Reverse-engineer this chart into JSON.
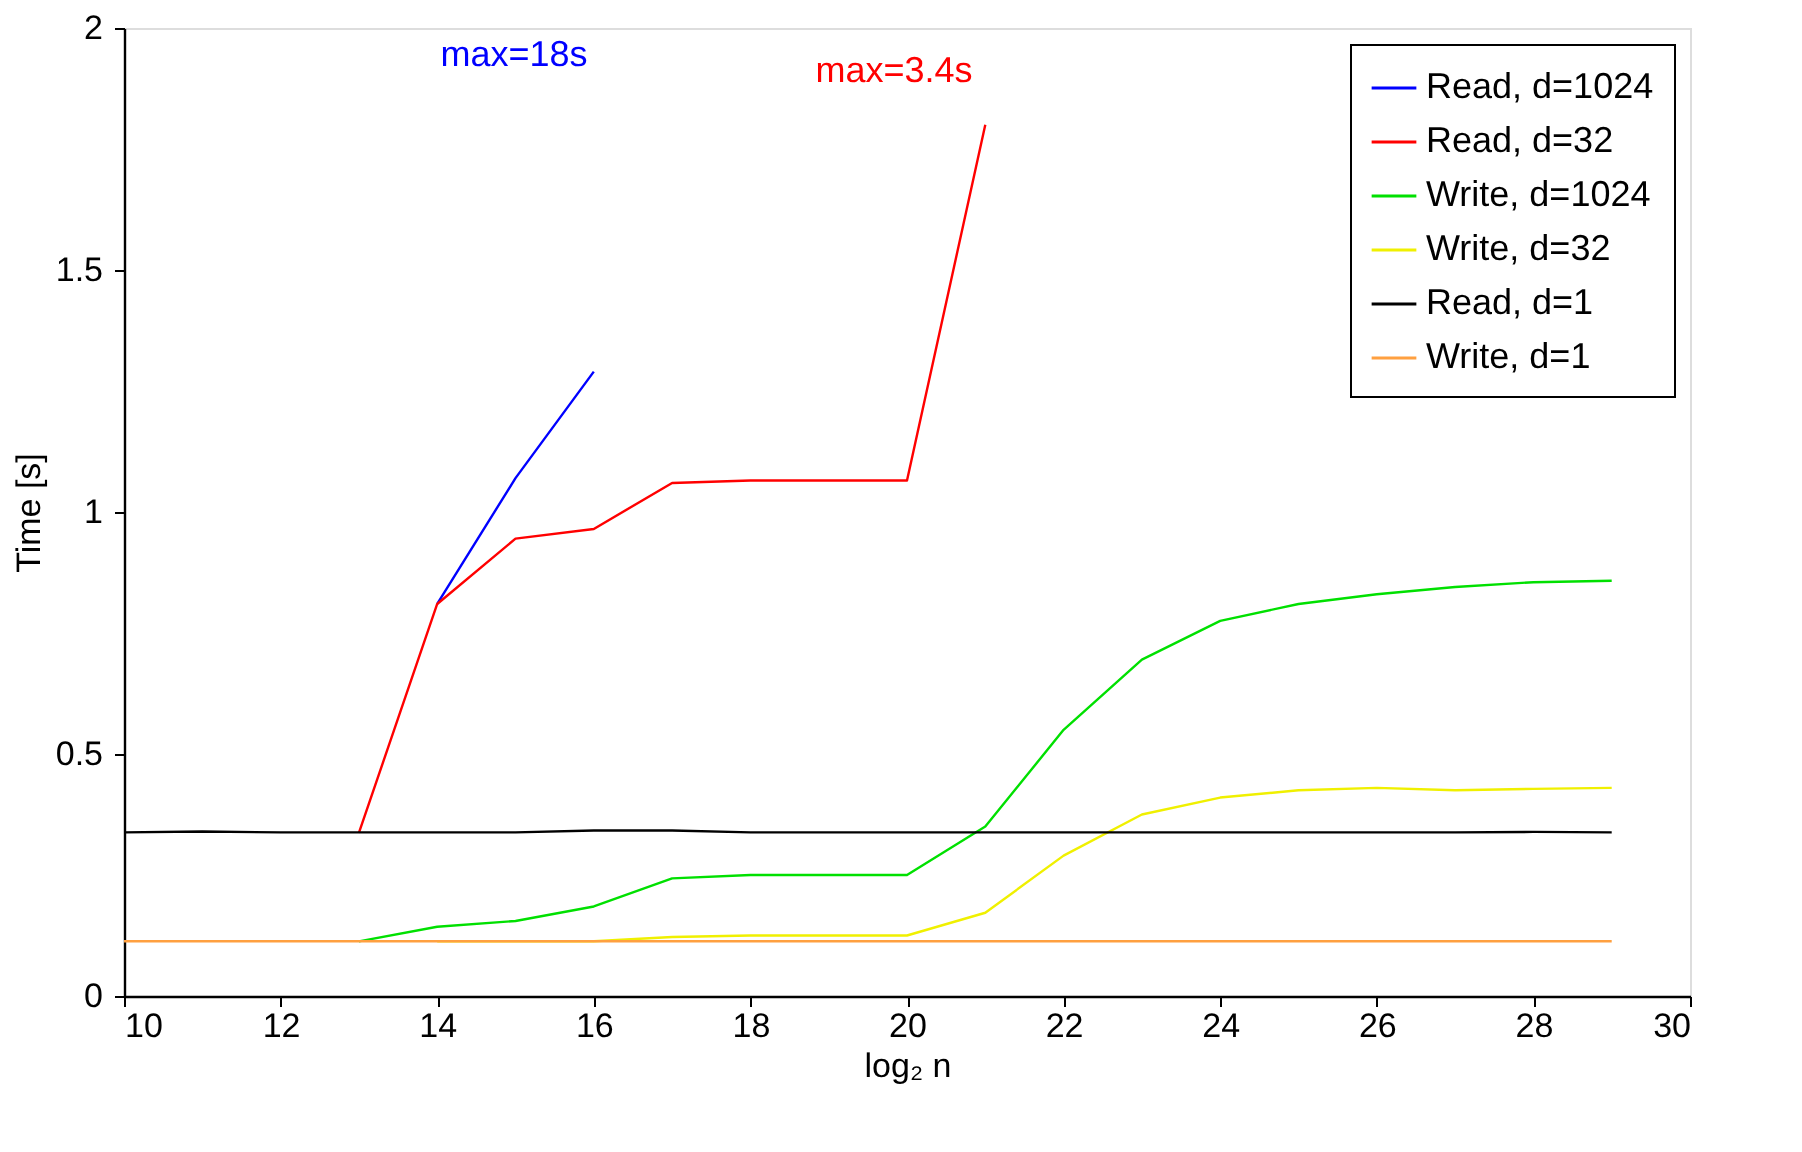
{
  "chart_data": {
    "type": "line",
    "xlabel": "log₂ n",
    "ylabel": "Time [s]",
    "x": [
      10,
      11,
      12,
      13,
      14,
      15,
      16,
      17,
      18,
      19,
      20,
      21,
      22,
      23,
      24,
      25,
      26,
      27,
      28,
      29
    ],
    "series": [
      {
        "name": "Read, d=1024",
        "color": "#0000ff",
        "values": [
          null,
          null,
          null,
          null,
          0.81,
          1.07,
          1.29,
          null,
          null,
          null,
          null,
          null,
          null,
          null,
          null,
          null,
          null,
          null,
          null,
          null
        ]
      },
      {
        "name": "Read, d=32",
        "color": "#ff0000",
        "values": [
          null,
          null,
          null,
          0.337,
          0.81,
          0.945,
          0.965,
          1.06,
          1.065,
          1.065,
          1.065,
          1.8,
          null,
          null,
          null,
          null,
          null,
          null,
          null,
          null
        ]
      },
      {
        "name": "Write, d=1024",
        "color": "#00e000",
        "values": [
          null,
          null,
          null,
          0.113,
          0.143,
          0.155,
          0.185,
          0.243,
          0.25,
          0.25,
          0.25,
          0.35,
          0.55,
          0.695,
          0.775,
          0.81,
          0.83,
          0.845,
          0.855,
          0.858
        ]
      },
      {
        "name": "Write, d=32",
        "color": "#f0f000",
        "values": [
          null,
          null,
          null,
          null,
          0.113,
          0.113,
          0.113,
          0.122,
          0.125,
          0.125,
          0.125,
          0.172,
          0.29,
          0.375,
          0.41,
          0.425,
          0.43,
          0.425,
          0.428,
          0.43
        ]
      },
      {
        "name": "Read, d=1",
        "color": "#000000",
        "values": [
          0.338,
          0.34,
          0.338,
          0.338,
          0.338,
          0.338,
          0.342,
          0.342,
          0.338,
          0.338,
          0.338,
          0.338,
          0.338,
          0.338,
          0.338,
          0.338,
          0.338,
          0.338,
          0.339,
          0.338
        ]
      },
      {
        "name": "Write, d=1",
        "color": "#ffa040",
        "values": [
          0.113,
          0.113,
          0.113,
          0.113,
          0.113,
          0.113,
          0.113,
          0.113,
          0.113,
          0.113,
          0.113,
          0.113,
          0.113,
          0.113,
          0.113,
          0.113,
          0.113,
          0.113,
          0.113,
          0.113
        ]
      }
    ],
    "annotations": [
      "max=18s",
      "max=3.4s"
    ],
    "xlim": [
      10,
      30
    ],
    "xticks": [
      10,
      12,
      14,
      16,
      18,
      20,
      22,
      24,
      26,
      28,
      30
    ],
    "ylim": [
      0,
      2
    ],
    "yticks": [
      0,
      {
        "value": 0.5,
        "label": "0.5"
      },
      1,
      1.5,
      2
    ],
    "grid": false,
    "legend": "top right",
    "line_style": "solid",
    "marker": "none"
  }
}
